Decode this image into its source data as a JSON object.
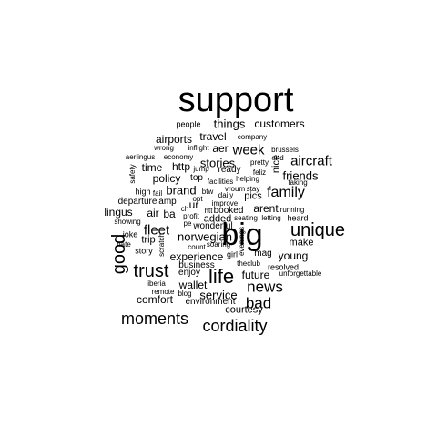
{
  "word_cloud": {
    "text_color": "#000000",
    "background_color": "#ffffff",
    "words": [
      {
        "text": "support",
        "weight": 10,
        "orientation": "horizontal"
      },
      {
        "text": "big",
        "weight": 9,
        "orientation": "horizontal"
      },
      {
        "text": "life",
        "weight": 7,
        "orientation": "horizontal"
      },
      {
        "text": "unique",
        "weight": 6,
        "orientation": "horizontal"
      },
      {
        "text": "trust",
        "weight": 6,
        "orientation": "horizontal"
      },
      {
        "text": "good",
        "weight": 6,
        "orientation": "vertical"
      },
      {
        "text": "moments",
        "weight": 5,
        "orientation": "horizontal"
      },
      {
        "text": "cordiality",
        "weight": 5,
        "orientation": "horizontal"
      },
      {
        "text": "news",
        "weight": 5,
        "orientation": "horizontal"
      },
      {
        "text": "bad",
        "weight": 5,
        "orientation": "horizontal"
      },
      {
        "text": "family",
        "weight": 4,
        "orientation": "horizontal"
      },
      {
        "text": "aircraft",
        "weight": 4,
        "orientation": "horizontal"
      },
      {
        "text": "week",
        "weight": 4,
        "orientation": "horizontal"
      },
      {
        "text": "fleet",
        "weight": 4,
        "orientation": "horizontal"
      },
      {
        "text": "norwegian",
        "weight": 3,
        "orientation": "horizontal"
      },
      {
        "text": "things",
        "weight": 3,
        "orientation": "horizontal"
      },
      {
        "text": "service",
        "weight": 3,
        "orientation": "horizontal"
      },
      {
        "text": "stories",
        "weight": 3,
        "orientation": "horizontal"
      },
      {
        "text": "friends",
        "weight": 3,
        "orientation": "horizontal"
      },
      {
        "text": "brand",
        "weight": 3,
        "orientation": "horizontal"
      },
      {
        "text": "young",
        "weight": 2,
        "orientation": "horizontal"
      },
      {
        "text": "experience",
        "weight": 2,
        "orientation": "horizontal"
      },
      {
        "text": "future",
        "weight": 2,
        "orientation": "horizontal"
      },
      {
        "text": "comfort",
        "weight": 2,
        "orientation": "horizontal"
      },
      {
        "text": "customers",
        "weight": 2,
        "orientation": "horizontal"
      },
      {
        "text": "travel",
        "weight": 2,
        "orientation": "horizontal"
      },
      {
        "text": "airports",
        "weight": 2,
        "orientation": "horizontal"
      },
      {
        "text": "time",
        "weight": 2,
        "orientation": "horizontal"
      },
      {
        "text": "http",
        "weight": 2,
        "orientation": "horizontal"
      },
      {
        "text": "policy",
        "weight": 2,
        "orientation": "horizontal"
      },
      {
        "text": "lingus",
        "weight": 2,
        "orientation": "horizontal"
      },
      {
        "text": "air",
        "weight": 2,
        "orientation": "horizontal"
      },
      {
        "text": "ba",
        "weight": 2,
        "orientation": "horizontal"
      },
      {
        "text": "ur",
        "weight": 2,
        "orientation": "horizontal"
      },
      {
        "text": "aer",
        "weight": 2,
        "orientation": "horizontal"
      },
      {
        "text": "arent",
        "weight": 2,
        "orientation": "horizontal"
      },
      {
        "text": "wallet",
        "weight": 2,
        "orientation": "horizontal"
      },
      {
        "text": "courtesy",
        "weight": 2,
        "orientation": "horizontal"
      },
      {
        "text": "nice",
        "weight": 2,
        "orientation": "vertical"
      },
      {
        "text": "added",
        "weight": 2,
        "orientation": "horizontal"
      },
      {
        "text": "pics",
        "weight": 2,
        "orientation": "horizontal"
      },
      {
        "text": "make",
        "weight": 2,
        "orientation": "horizontal"
      },
      {
        "text": "people",
        "weight": 1,
        "orientation": "horizontal"
      },
      {
        "text": "company",
        "weight": 1,
        "orientation": "horizontal"
      },
      {
        "text": "inflight",
        "weight": 1,
        "orientation": "horizontal"
      },
      {
        "text": "wrong",
        "weight": 1,
        "orientation": "horizontal"
      },
      {
        "text": "economy",
        "weight": 1,
        "orientation": "horizontal"
      },
      {
        "text": "aerlingus",
        "weight": 1,
        "orientation": "horizontal"
      },
      {
        "text": "brussels",
        "weight": 1,
        "orientation": "horizontal"
      },
      {
        "text": "end",
        "weight": 1,
        "orientation": "horizontal"
      },
      {
        "text": "pretty",
        "weight": 1,
        "orientation": "horizontal"
      },
      {
        "text": "safety",
        "weight": 1,
        "orientation": "vertical"
      },
      {
        "text": "jump",
        "weight": 1,
        "orientation": "horizontal"
      },
      {
        "text": "ready",
        "weight": 1,
        "orientation": "horizontal"
      },
      {
        "text": "feliz",
        "weight": 1,
        "orientation": "horizontal"
      },
      {
        "text": "top",
        "weight": 1,
        "orientation": "horizontal"
      },
      {
        "text": "facilities",
        "weight": 1,
        "orientation": "horizontal"
      },
      {
        "text": "helping",
        "weight": 1,
        "orientation": "horizontal"
      },
      {
        "text": "taking",
        "weight": 1,
        "orientation": "horizontal"
      },
      {
        "text": "high",
        "weight": 1,
        "orientation": "horizontal"
      },
      {
        "text": "fail",
        "weight": 1,
        "orientation": "horizontal"
      },
      {
        "text": "opt",
        "weight": 1,
        "orientation": "horizontal"
      },
      {
        "text": "btw",
        "weight": 1,
        "orientation": "horizontal"
      },
      {
        "text": "vroum",
        "weight": 1,
        "orientation": "horizontal"
      },
      {
        "text": "stay",
        "weight": 1,
        "orientation": "horizontal"
      },
      {
        "text": "daily",
        "weight": 1,
        "orientation": "horizontal"
      },
      {
        "text": "departure",
        "weight": 1,
        "orientation": "horizontal"
      },
      {
        "text": "amp",
        "weight": 1,
        "orientation": "horizontal"
      },
      {
        "text": "improve",
        "weight": 1,
        "orientation": "horizontal"
      },
      {
        "text": "running",
        "weight": 1,
        "orientation": "horizontal"
      },
      {
        "text": "ch",
        "weight": 1,
        "orientation": "horizontal"
      },
      {
        "text": "htt",
        "weight": 1,
        "orientation": "horizontal"
      },
      {
        "text": "booked",
        "weight": 1,
        "orientation": "horizontal"
      },
      {
        "text": "profit",
        "weight": 1,
        "orientation": "horizontal"
      },
      {
        "text": "seating",
        "weight": 1,
        "orientation": "horizontal"
      },
      {
        "text": "letting",
        "weight": 1,
        "orientation": "horizontal"
      },
      {
        "text": "heard",
        "weight": 1,
        "orientation": "horizontal"
      },
      {
        "text": "showing",
        "weight": 1,
        "orientation": "horizontal"
      },
      {
        "text": "pe",
        "weight": 1,
        "orientation": "horizontal"
      },
      {
        "text": "wonderful",
        "weight": 1,
        "orientation": "horizontal"
      },
      {
        "text": "joke",
        "weight": 1,
        "orientation": "horizontal"
      },
      {
        "text": "trip",
        "weight": 1,
        "orientation": "horizontal"
      },
      {
        "text": "hate",
        "weight": 1,
        "orientation": "horizontal"
      },
      {
        "text": "scratch",
        "weight": 1,
        "orientation": "vertical"
      },
      {
        "text": "soaring",
        "weight": 1,
        "orientation": "horizontal"
      },
      {
        "text": "count",
        "weight": 1,
        "orientation": "horizontal"
      },
      {
        "text": "story",
        "weight": 1,
        "orientation": "horizontal"
      },
      {
        "text": "evenings",
        "weight": 1,
        "orientation": "vertical"
      },
      {
        "text": "girl",
        "weight": 1,
        "orientation": "horizontal"
      },
      {
        "text": "theclub",
        "weight": 1,
        "orientation": "horizontal"
      },
      {
        "text": "business",
        "weight": 1,
        "orientation": "horizontal"
      },
      {
        "text": "resolved",
        "weight": 1,
        "orientation": "horizontal"
      },
      {
        "text": "enjoy",
        "weight": 1,
        "orientation": "horizontal"
      },
      {
        "text": "iberia",
        "weight": 1,
        "orientation": "horizontal"
      },
      {
        "text": "unforgettable",
        "weight": 1,
        "orientation": "horizontal"
      },
      {
        "text": "remote",
        "weight": 1,
        "orientation": "horizontal"
      },
      {
        "text": "blog",
        "weight": 1,
        "orientation": "horizontal"
      },
      {
        "text": "environment",
        "weight": 1,
        "orientation": "horizontal"
      },
      {
        "text": "mag",
        "weight": 1,
        "orientation": "horizontal"
      }
    ]
  }
}
